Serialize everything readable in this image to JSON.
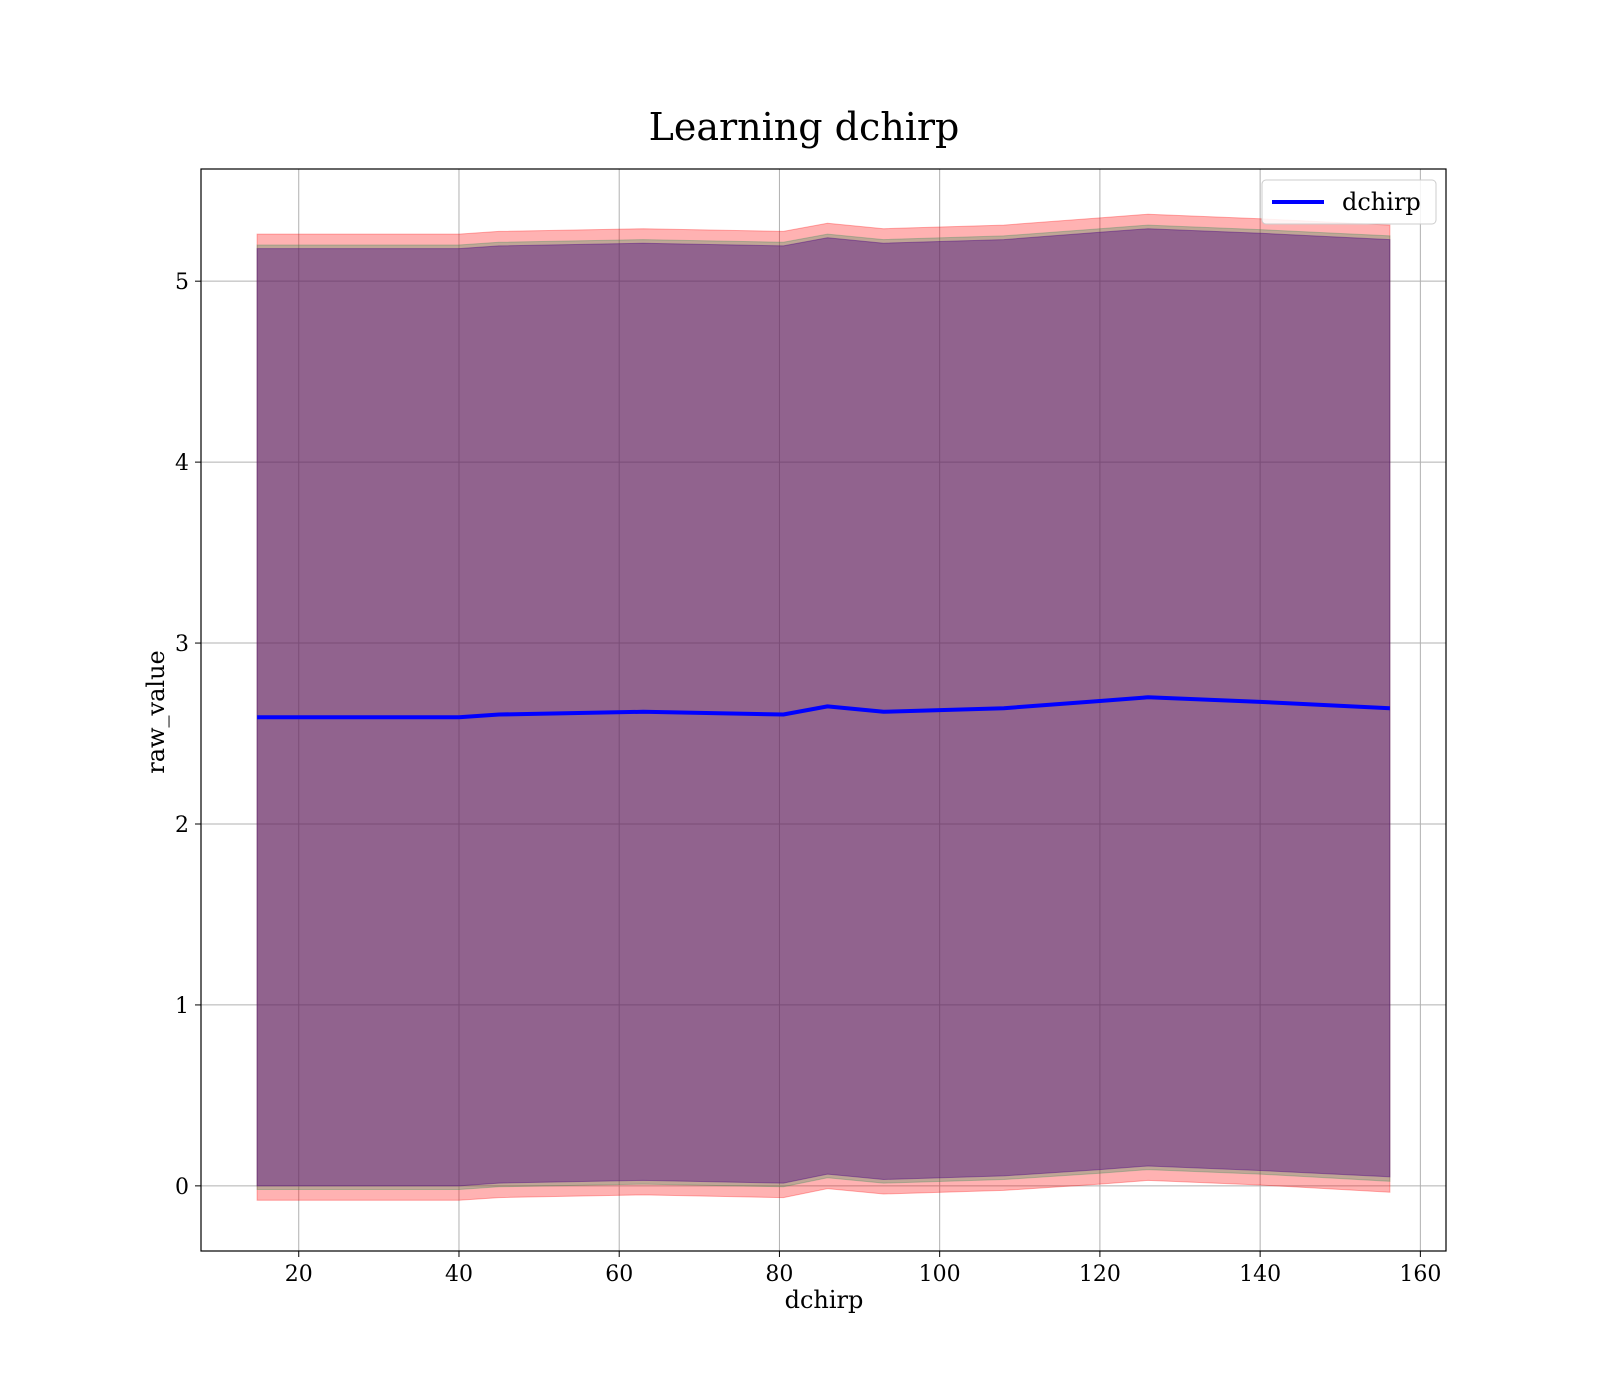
{
  "chart_data": {
    "type": "line",
    "title": "Learning dchirp",
    "xlabel": "dchirp",
    "ylabel": "raw_value",
    "xlim": [
      7.8,
      163.2
    ],
    "ylim": [
      -0.36,
      5.62
    ],
    "xticks": [
      20,
      40,
      60,
      80,
      100,
      120,
      140,
      160
    ],
    "yticks": [
      0,
      1,
      2,
      3,
      4,
      5
    ],
    "grid": true,
    "legend_position": "top-right",
    "x": [
      14.8,
      40.0,
      45.0,
      63.0,
      80.5,
      86.0,
      93.0,
      108.0,
      120.0,
      126.0,
      140.0,
      156.2
    ],
    "series": [
      {
        "name": "dchirp",
        "color": "#0000ff",
        "values": [
          2.59,
          2.59,
          2.605,
          2.62,
          2.605,
          2.65,
          2.62,
          2.64,
          2.68,
          2.7,
          2.675,
          2.64
        ]
      }
    ],
    "bands": [
      {
        "color": "#ff0000",
        "opacity": 0.3,
        "lower": [
          -0.08,
          -0.08,
          -0.065,
          -0.05,
          -0.065,
          -0.015,
          -0.045,
          -0.025,
          0.01,
          0.03,
          0.005,
          -0.035
        ],
        "upper": [
          5.26,
          5.26,
          5.275,
          5.29,
          5.275,
          5.32,
          5.29,
          5.31,
          5.35,
          5.37,
          5.345,
          5.31
        ]
      },
      {
        "color": "#2e8b57",
        "opacity": 0.3,
        "lower": [
          -0.02,
          -0.02,
          -0.005,
          0.01,
          -0.005,
          0.045,
          0.015,
          0.035,
          0.07,
          0.09,
          0.065,
          0.025
        ],
        "upper": [
          5.2,
          5.2,
          5.215,
          5.23,
          5.215,
          5.26,
          5.23,
          5.25,
          5.29,
          5.31,
          5.285,
          5.25
        ]
      },
      {
        "color": "#4b0082",
        "opacity": 0.4,
        "lower": [
          0.0,
          0.0,
          0.015,
          0.03,
          0.015,
          0.065,
          0.035,
          0.055,
          0.09,
          0.11,
          0.085,
          0.05
        ],
        "upper": [
          5.18,
          5.18,
          5.195,
          5.21,
          5.195,
          5.24,
          5.21,
          5.23,
          5.27,
          5.29,
          5.265,
          5.23
        ]
      }
    ]
  }
}
